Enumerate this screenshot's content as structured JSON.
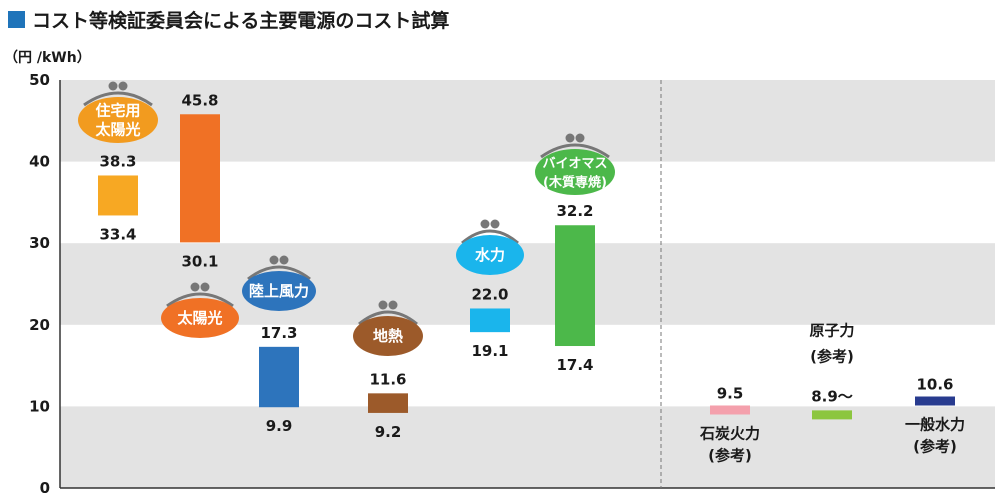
{
  "chart_data": {
    "type": "bar",
    "title": "コスト等検証委員会による主要電源のコスト試算",
    "ylabel": "（円 /kWh）",
    "ylim": [
      0,
      50
    ],
    "yticks": [
      0,
      10,
      20,
      30,
      40,
      50
    ],
    "grid": "alternating horizontal bands",
    "range_series": [
      {
        "name": "住宅用太陽光",
        "label_lines": [
          "住宅用",
          "太陽光"
        ],
        "low": 33.4,
        "high": 38.3,
        "color": "#f7a823",
        "purse_color": "#f29b1f"
      },
      {
        "name": "太陽光",
        "label_lines": [
          "太陽光"
        ],
        "low": 30.1,
        "high": 45.8,
        "color": "#f07125",
        "purse_color": "#f07125"
      },
      {
        "name": "陸上風力",
        "label_lines": [
          "陸上風力"
        ],
        "low": 9.9,
        "high": 17.3,
        "color": "#2d74bc",
        "purse_color": "#2d74bc"
      },
      {
        "name": "地熱",
        "label_lines": [
          "地熱"
        ],
        "low": 9.2,
        "high": 11.6,
        "color": "#9c5a2a",
        "purse_color": "#9c5a2a"
      },
      {
        "name": "水力",
        "label_lines": [
          "水力"
        ],
        "low": 19.1,
        "high": 22.0,
        "color": "#1ab5ec",
        "purse_color": "#1ab5ec"
      },
      {
        "name": "バイオマス（木質専焼）",
        "label_lines": [
          "バイオマス",
          "(木質専焼)"
        ],
        "low": 17.4,
        "high": 32.2,
        "color": "#4cb84a",
        "purse_color": "#4cb84a"
      }
    ],
    "reference_series": [
      {
        "name": "石炭火力（参考）",
        "label_lines": [
          "石炭火力",
          "(参考)"
        ],
        "value": 9.5,
        "value_label": "9.5",
        "color": "#f4a0ac"
      },
      {
        "name": "原子力（参考）",
        "label_lines": [
          "原子力",
          "(参考)"
        ],
        "value": 8.9,
        "value_label": "8.9～",
        "color": "#8cc63f"
      },
      {
        "name": "一般水力（参考）",
        "label_lines": [
          "一般水力",
          "(参考)"
        ],
        "value": 10.6,
        "value_label": "10.6",
        "color": "#283b8f"
      }
    ],
    "colors": {
      "band": "#e3e3e3",
      "title_square": "#1f74ba",
      "axis": "#333333",
      "divider": "#777777",
      "purse_clasp": "#777777"
    }
  }
}
